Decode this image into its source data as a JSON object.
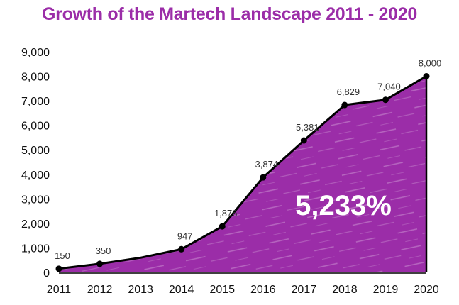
{
  "chart_data": {
    "type": "area",
    "title": "Growth of the Martech Landscape 2011 - 2020",
    "xlabel": "",
    "ylabel": "",
    "ylim": [
      0,
      9000
    ],
    "y_ticks": [
      "0",
      "1,000",
      "2,000",
      "3,000",
      "4,000",
      "5,000",
      "6,000",
      "7,000",
      "8,000",
      "9,000"
    ],
    "y_tick_values": [
      0,
      1000,
      2000,
      3000,
      4000,
      5000,
      6000,
      7000,
      8000,
      9000
    ],
    "categories": [
      "2011",
      "2012",
      "2013",
      "2014",
      "2015",
      "2016",
      "2017",
      "2018",
      "2019",
      "2020"
    ],
    "series": [
      {
        "values": [
          150,
          350,
          600,
          947,
          1876,
          3874,
          5381,
          6829,
          7040,
          8000
        ],
        "labels": [
          "150",
          "350",
          "",
          "947",
          "1,876",
          "3,874",
          "5,381",
          "6,829",
          "7,040",
          "8,000"
        ],
        "markers": [
          true,
          true,
          false,
          true,
          true,
          true,
          true,
          true,
          true,
          true
        ]
      }
    ],
    "annotation": "5,233%",
    "grid": false,
    "legend": "none",
    "colors": {
      "fill": "#9b2da8",
      "line": "#000000",
      "title": "#9b2da8"
    }
  }
}
